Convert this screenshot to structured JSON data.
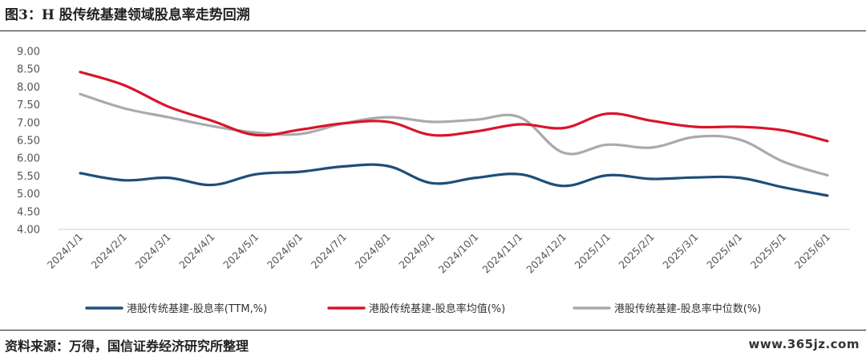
{
  "header": {
    "title": "图3：H 股传统基建领域股息率走势回溯"
  },
  "footer": {
    "source": "资料来源：万得，国信证券经济研究所整理",
    "watermark": "www.365jz.com"
  },
  "colors": {
    "series1": "#1f4e79",
    "series2": "#d9142b",
    "series3": "#aaaaaa"
  },
  "chart_data": {
    "type": "line",
    "ylim": [
      4.0,
      9.0
    ],
    "yticks": [
      "4.00",
      "4.50",
      "5.00",
      "5.50",
      "6.00",
      "6.50",
      "7.00",
      "7.50",
      "8.00",
      "8.50",
      "9.00"
    ],
    "categories": [
      "2024/1/1",
      "2024/2/1",
      "2024/3/1",
      "2024/4/1",
      "2024/5/1",
      "2024/6/1",
      "2024/7/1",
      "2024/8/1",
      "2024/9/1",
      "2024/10/1",
      "2024/11/1",
      "2024/12/1",
      "2025/1/1",
      "2025/2/1",
      "2025/3/1",
      "2025/4/1",
      "2025/5/1",
      "2025/6/1"
    ],
    "series": [
      {
        "name": "港股传统基建-股息率(TTM,%)",
        "color": "#1f4e79",
        "values": [
          5.58,
          5.38,
          5.45,
          5.25,
          5.55,
          5.62,
          5.77,
          5.78,
          5.3,
          5.45,
          5.55,
          5.22,
          5.52,
          5.42,
          5.46,
          5.45,
          5.18,
          4.95
        ]
      },
      {
        "name": "港股传统基建-股息率均值(%)",
        "color": "#d9142b",
        "values": [
          8.42,
          8.05,
          7.45,
          7.05,
          6.65,
          6.8,
          6.98,
          7.02,
          6.65,
          6.75,
          6.95,
          6.85,
          7.25,
          7.05,
          6.88,
          6.88,
          6.78,
          6.48
        ]
      },
      {
        "name": "港股传统基建-股息率中位数(%)",
        "color": "#aaaaaa",
        "values": [
          7.8,
          7.4,
          7.15,
          6.9,
          6.72,
          6.68,
          6.98,
          7.15,
          7.02,
          7.08,
          7.15,
          6.15,
          6.38,
          6.3,
          6.6,
          6.52,
          5.9,
          5.52
        ]
      }
    ]
  }
}
